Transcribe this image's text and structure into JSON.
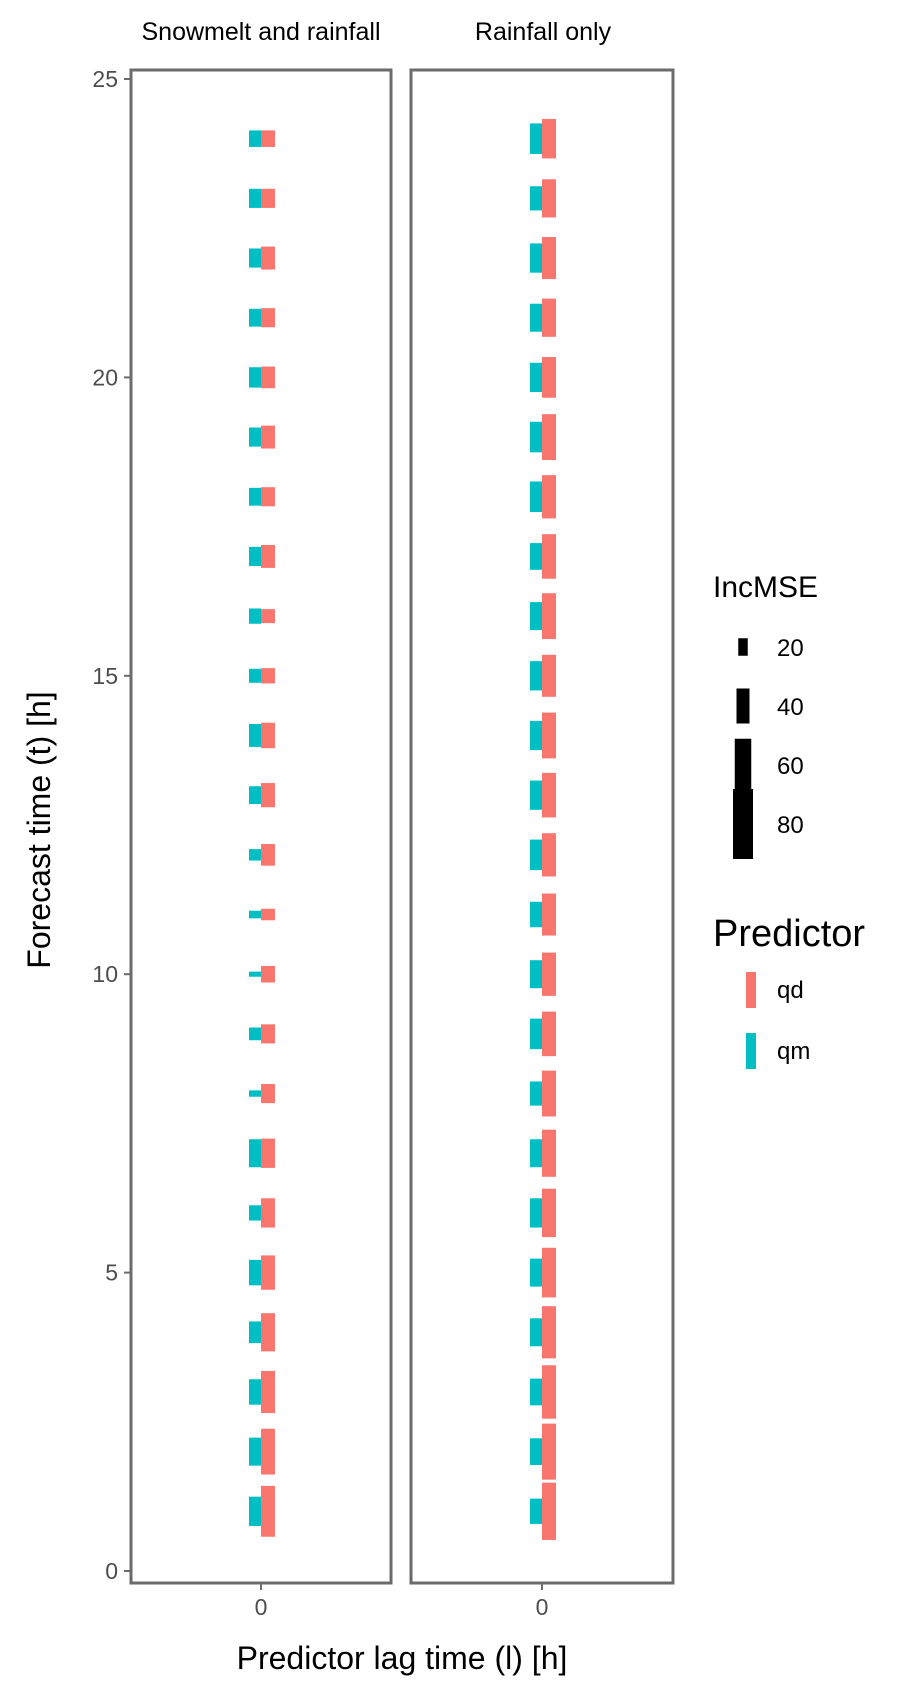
{
  "chart_data": {
    "type": "bar",
    "facets": [
      "Snowmelt and rainfall",
      "Rainfall only"
    ],
    "xlabel": "Predictor lag time (l) [h]",
    "ylabel": "Forecast time (t) [h]",
    "x_ticks": [
      "0"
    ],
    "y_ticks": [
      0,
      5,
      10,
      15,
      20,
      25
    ],
    "ylim": [
      0,
      25
    ],
    "grid": false,
    "forecast_times": [
      1,
      2,
      3,
      4,
      5,
      6,
      7,
      8,
      9,
      10,
      11,
      12,
      13,
      14,
      15,
      16,
      17,
      18,
      19,
      20,
      21,
      22,
      23,
      24
    ],
    "series": [
      {
        "name": "qd",
        "color": "#F8766D",
        "panels": [
          [
            80,
            72,
            66,
            60,
            54,
            46,
            46,
            30,
            30,
            26,
            18,
            34,
            38,
            40,
            24,
            22,
            36,
            30,
            36,
            34,
            30,
            36,
            30,
            26
          ],
          [
            90,
            88,
            84,
            82,
            78,
            76,
            74,
            72,
            70,
            68,
            66,
            68,
            70,
            72,
            66,
            72,
            70,
            68,
            72,
            64,
            60,
            66,
            60,
            62
          ]
        ]
      },
      {
        "name": "qm",
        "color": "#00BFC4",
        "panels": [
          [
            46,
            44,
            40,
            34,
            40,
            24,
            44,
            10,
            20,
            8,
            12,
            18,
            28,
            36,
            22,
            24,
            30,
            28,
            30,
            32,
            28,
            30,
            30,
            26
          ],
          [
            40,
            42,
            42,
            44,
            44,
            46,
            44,
            38,
            48,
            44,
            40,
            48,
            46,
            46,
            46,
            44,
            42,
            48,
            48,
            46,
            44,
            46,
            38,
            48
          ]
        ]
      }
    ],
    "legend": {
      "placement": "right",
      "size_title": "IncMSE",
      "size_breaks": [
        20,
        40,
        60,
        80
      ],
      "color_title": "Predictor",
      "color_items": [
        {
          "label": "qd",
          "color": "#F8766D"
        },
        {
          "label": "qm",
          "color": "#00BFC4"
        }
      ]
    },
    "colors": {
      "qd": "#F8766D",
      "qm": "#00BFC4",
      "panel_border": "#6b6b6b",
      "axis_text": "#4d4d4d",
      "title_text": "#000000"
    }
  }
}
